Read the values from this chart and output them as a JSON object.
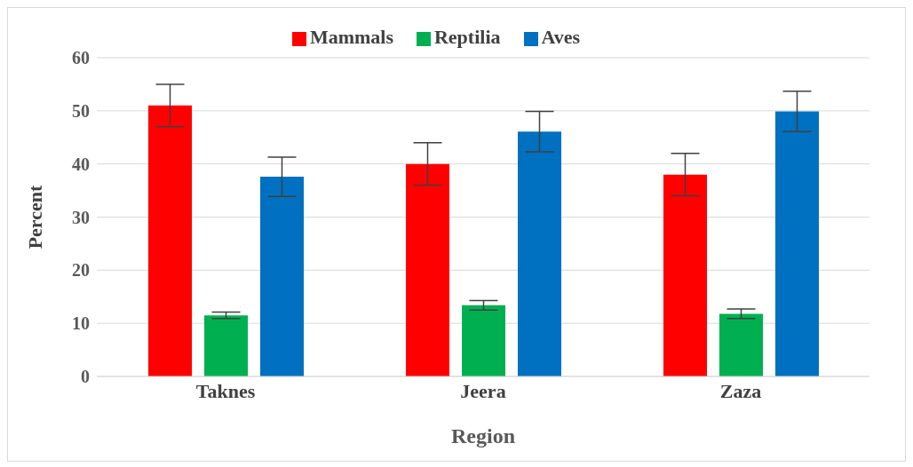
{
  "chart_data": {
    "type": "bar",
    "xlabel": "Region",
    "ylabel": "Percent",
    "categories": [
      "Taknes",
      "Jeera",
      "Zaza"
    ],
    "series": [
      {
        "name": "Mammals",
        "color": "#ff0000",
        "values": [
          51,
          40,
          38
        ],
        "errors": [
          4,
          4,
          4
        ]
      },
      {
        "name": "Reptilia",
        "color": "#00b050",
        "values": [
          11.5,
          13.4,
          11.8
        ],
        "errors": [
          0.6,
          0.9,
          0.9
        ]
      },
      {
        "name": "Aves",
        "color": "#0070c0",
        "values": [
          37.6,
          46.1,
          49.9
        ],
        "errors": [
          3.7,
          3.8,
          3.8
        ]
      }
    ],
    "ylim": [
      0,
      60
    ],
    "yticks": [
      0,
      10,
      20,
      30,
      40,
      50,
      60
    ],
    "grid": "y",
    "legend": "top"
  }
}
